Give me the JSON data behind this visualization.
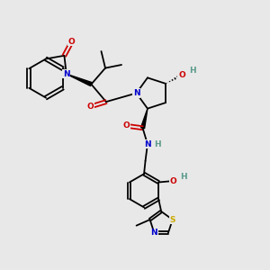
{
  "bg_color": "#e8e8e8",
  "C": "#000000",
  "N": "#0000cc",
  "O": "#cc0000",
  "S": "#ccaa00",
  "H": "#5a9a8a",
  "lw": 1.3,
  "fs": 6.5
}
